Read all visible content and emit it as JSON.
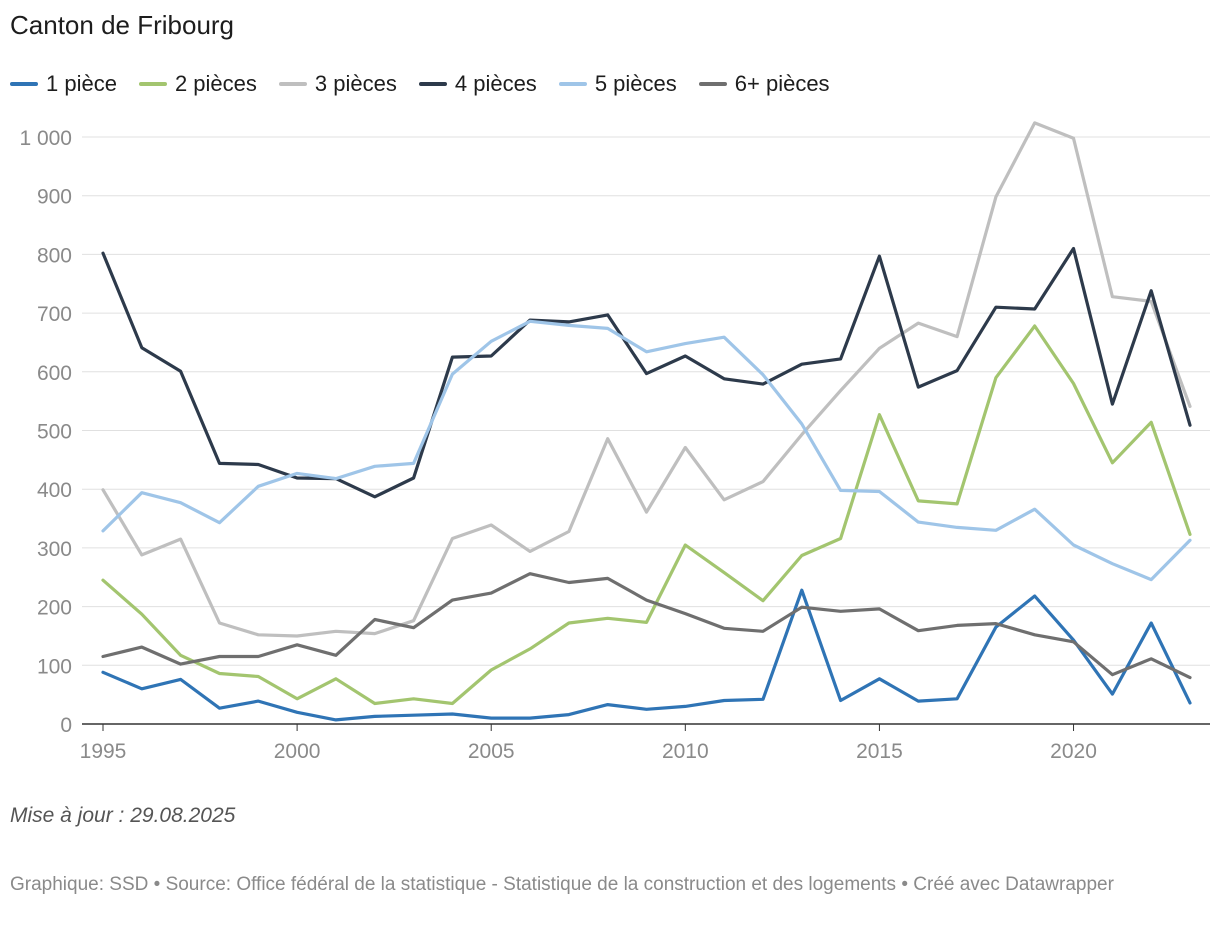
{
  "title": "Canton de Fribourg",
  "legend": [
    {
      "label": "1 pièce",
      "color": "#2f74b5"
    },
    {
      "label": "2 pièces",
      "color": "#a3c56f"
    },
    {
      "label": "3 pièces",
      "color": "#bfbfbf"
    },
    {
      "label": "4 pièces",
      "color": "#2d3a4b"
    },
    {
      "label": "5 pièces",
      "color": "#9fc5e8"
    },
    {
      "label": "6+ pièces",
      "color": "#6f6f6f"
    }
  ],
  "chart_data": {
    "type": "line",
    "title": "Canton de Fribourg",
    "xlabel": "",
    "ylabel": "",
    "xlim": [
      1995,
      2023
    ],
    "ylim": [
      0,
      1000
    ],
    "grid": true,
    "legend_position": "top-left",
    "x": [
      1995,
      1996,
      1997,
      1998,
      1999,
      2000,
      2001,
      2002,
      2003,
      2004,
      2005,
      2006,
      2007,
      2008,
      2009,
      2010,
      2011,
      2012,
      2013,
      2014,
      2015,
      2016,
      2017,
      2018,
      2019,
      2020,
      2021,
      2022,
      2023
    ],
    "x_ticks": [
      1995,
      2000,
      2005,
      2010,
      2015,
      2020
    ],
    "y_ticks": [
      0,
      100,
      200,
      300,
      400,
      500,
      600,
      700,
      800,
      900,
      1000
    ],
    "y_tick_labels": [
      "0",
      "100",
      "200",
      "300",
      "400",
      "500",
      "600",
      "700",
      "800",
      "900",
      "1 000"
    ],
    "series": [
      {
        "name": "1 pièce",
        "color": "#2f74b5",
        "values": [
          88,
          60,
          76,
          27,
          39,
          20,
          7,
          13,
          15,
          17,
          10,
          10,
          16,
          33,
          25,
          30,
          40,
          42,
          228,
          40,
          77,
          39,
          43,
          165,
          218,
          143,
          51,
          172,
          36
        ]
      },
      {
        "name": "2 pièces",
        "color": "#a3c56f",
        "values": [
          245,
          187,
          117,
          86,
          81,
          43,
          77,
          35,
          43,
          35,
          92,
          128,
          172,
          180,
          173,
          305,
          258,
          210,
          287,
          316,
          527,
          380,
          375,
          590,
          678,
          580,
          445,
          514,
          323
        ]
      },
      {
        "name": "3 pièces",
        "color": "#bfbfbf",
        "values": [
          399,
          288,
          315,
          172,
          152,
          150,
          158,
          154,
          176,
          316,
          339,
          294,
          328,
          486,
          361,
          471,
          382,
          413,
          493,
          568,
          640,
          683,
          660,
          898,
          1024,
          998,
          728,
          720,
          541
        ]
      },
      {
        "name": "4 pièces",
        "color": "#2d3a4b",
        "values": [
          802,
          641,
          601,
          444,
          442,
          419,
          418,
          387,
          419,
          625,
          627,
          688,
          685,
          697,
          597,
          627,
          588,
          579,
          613,
          622,
          797,
          574,
          602,
          710,
          707,
          810,
          545,
          738,
          509
        ]
      },
      {
        "name": "5 pièces",
        "color": "#9fc5e8",
        "values": [
          329,
          394,
          377,
          343,
          405,
          427,
          418,
          439,
          444,
          596,
          652,
          686,
          679,
          674,
          634,
          648,
          659,
          595,
          511,
          398,
          396,
          344,
          335,
          330,
          366,
          305,
          273,
          246,
          313
        ]
      },
      {
        "name": "6+ pièces",
        "color": "#6f6f6f",
        "values": [
          115,
          131,
          102,
          115,
          115,
          135,
          117,
          178,
          164,
          211,
          223,
          256,
          241,
          248,
          211,
          188,
          163,
          158,
          199,
          192,
          196,
          159,
          168,
          171,
          152,
          140,
          84,
          111,
          79
        ]
      }
    ]
  },
  "footer": {
    "update": "Mise à jour : 29.08.2025",
    "source": "Graphique: SSD • Source: Office fédéral de la statistique - Statistique de la construction et des logements • Créé avec Datawrapper"
  }
}
